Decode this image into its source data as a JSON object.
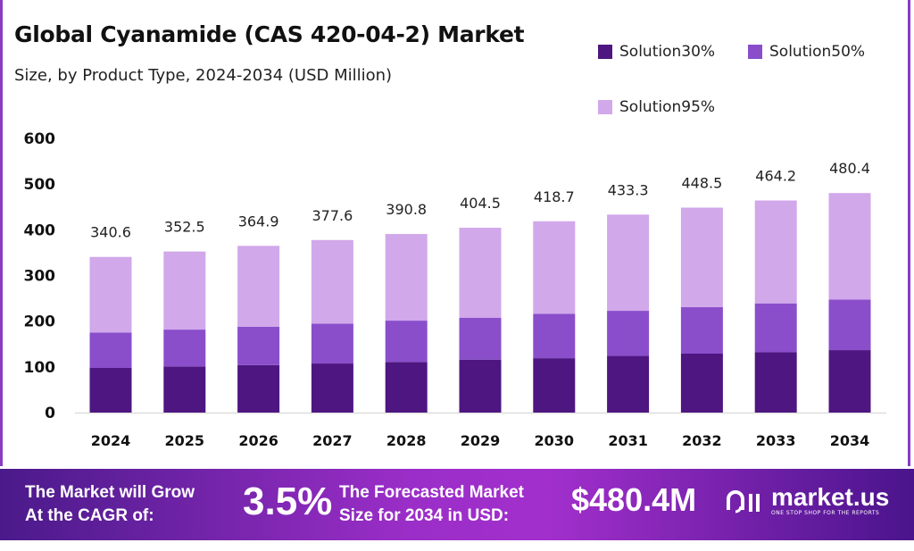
{
  "chart_data": {
    "type": "bar",
    "stacked": true,
    "title": "Global Cyanamide (CAS 420-04-2) Market",
    "subtitle": "Size, by Product Type, 2024-2034 (USD Million)",
    "categories": [
      "2024",
      "2025",
      "2026",
      "2027",
      "2028",
      "2029",
      "2030",
      "2031",
      "2032",
      "2033",
      "2034"
    ],
    "series": [
      {
        "name": "Solution30%",
        "color": "#4e1681",
        "values": [
          97.7,
          101.0,
          104.0,
          107.4,
          110.7,
          115.9,
          119.0,
          124.0,
          129.0,
          132.0,
          136.7
        ]
      },
      {
        "name": "Solution50%",
        "color": "#8a4ecb",
        "values": [
          77.3,
          80.6,
          84.0,
          87.3,
          90.5,
          91.8,
          97.0,
          98.7,
          102.0,
          107.0,
          110.7
        ]
      },
      {
        "name": "Solution95%",
        "color": "#d1a8ea",
        "values": [
          165.6,
          170.9,
          176.9,
          182.9,
          189.6,
          196.8,
          202.7,
          210.6,
          217.5,
          225.2,
          233.0
        ]
      }
    ],
    "totals": [
      "340.6",
      "352.5",
      "364.9",
      "377.6",
      "390.8",
      "404.5",
      "418.7",
      "433.3",
      "448.5",
      "464.2",
      "480.4"
    ],
    "yticks": [
      "0",
      "100",
      "200",
      "300",
      "400",
      "500",
      "600"
    ],
    "ylim": [
      0,
      600
    ],
    "grid": false,
    "legend": "top-right"
  },
  "banner": {
    "cagr_label_1": "The Market will Grow",
    "cagr_label_2": "At the CAGR of:",
    "cagr_value": "3.5%",
    "forecast_label_1": "The Forecasted Market",
    "forecast_label_2": "Size for 2034 in USD:",
    "forecast_value": "$480.4M",
    "logo_text": "market.us",
    "logo_tagline": "ONE STOP SHOP FOR THE REPORTS"
  }
}
